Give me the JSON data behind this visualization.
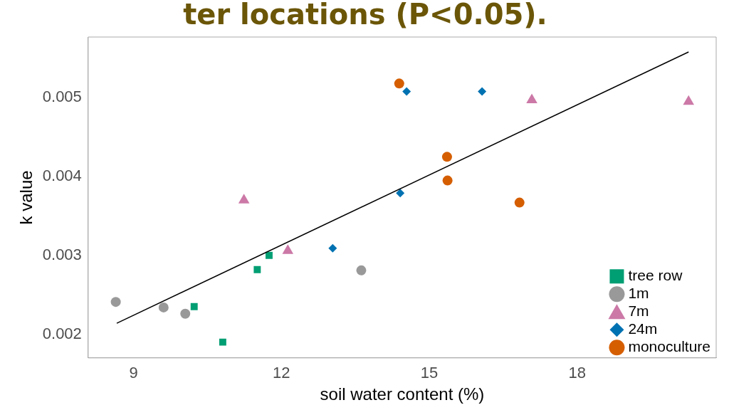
{
  "chart_data": {
    "type": "scatter",
    "title": "ter locations (P<0.05).",
    "xlabel": "soil water content (%)",
    "ylabel": "k value",
    "xlim": [
      8.08,
      20.82
    ],
    "ylim": [
      0.0017,
      0.00577
    ],
    "xticks": [
      9,
      12,
      15,
      18
    ],
    "yticks": [
      0.002,
      0.003,
      0.004,
      0.005
    ],
    "grid": false,
    "legend": "bottom right",
    "series": [
      {
        "name": "tree row",
        "color": "#009e73",
        "marker": "square",
        "x": [
          10.81,
          10.23,
          11.51,
          11.75
        ],
        "values": [
          0.0019,
          0.00235,
          0.00282,
          0.003
        ]
      },
      {
        "name": "1m",
        "color": "#999999",
        "marker": "circle",
        "x": [
          8.64,
          9.61,
          10.05,
          13.62
        ],
        "values": [
          0.00241,
          0.00234,
          0.00226,
          0.00281
        ]
      },
      {
        "name": "7m",
        "color": "#cc79a7",
        "marker": "triangle",
        "x": [
          11.24,
          12.13,
          17.08,
          20.26
        ],
        "values": [
          0.0037,
          0.00306,
          0.00497,
          0.00495
        ]
      },
      {
        "name": "24m",
        "color": "#0072b2",
        "marker": "diamond",
        "x": [
          13.04,
          14.41,
          14.54,
          16.07
        ],
        "values": [
          0.00309,
          0.00379,
          0.00508,
          0.00508
        ]
      },
      {
        "name": "monoculture",
        "color": "#d55e00",
        "marker": "circle",
        "x": [
          14.39,
          15.36,
          15.37,
          16.83
        ],
        "values": [
          0.00518,
          0.00425,
          0.00395,
          0.00367
        ]
      },
      {
        "type": "line",
        "color": "#000000",
        "marker": "none",
        "line_style": "solid",
        "x": [
          8.66,
          20.26
        ],
        "values": [
          0.00214,
          0.00558
        ]
      }
    ]
  }
}
